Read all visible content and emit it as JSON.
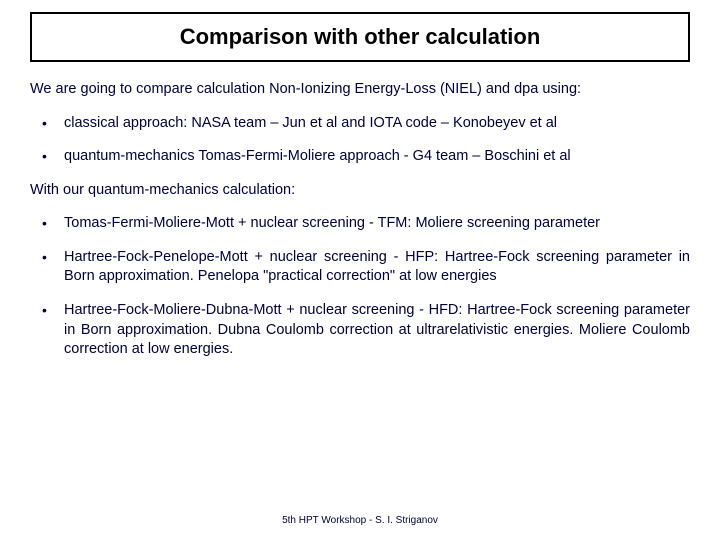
{
  "title": "Comparison with other calculation",
  "intro": "We are going to compare calculation Non-Ionizing Energy-Loss (NIEL) and dpa using:",
  "bullets_top": [
    "classical approach: NASA team – Jun et al  and IOTA code – Konobeyev et al",
    "quantum-mechanics Tomas-Fermi-Moliere approach  - G4 team – Boschini et al"
  ],
  "mid_line": "With our quantum-mechanics calculation:",
  "bullets_bottom": [
    "Tomas-Fermi-Moliere-Mott + nuclear screening  - TFM: Moliere screening parameter",
    "Hartree-Fock-Penelope-Mott + nuclear screening  - HFP: Hartree-Fock screening parameter in Born approximation. Penelopa \"practical correction\" at low energies",
    " Hartree-Fock-Moliere-Dubna-Mott + nuclear screening - HFD: Hartree-Fock screening parameter in Born approximation. Dubna Coulomb correction at ultrarelativistic energies. Moliere Coulomb correction at low energies."
  ],
  "footer": "5th HPT Workshop  -  S. I. Striganov",
  "colors": {
    "text": "#000040",
    "title_text": "#000000",
    "border": "#000000",
    "background": "#ffffff"
  }
}
